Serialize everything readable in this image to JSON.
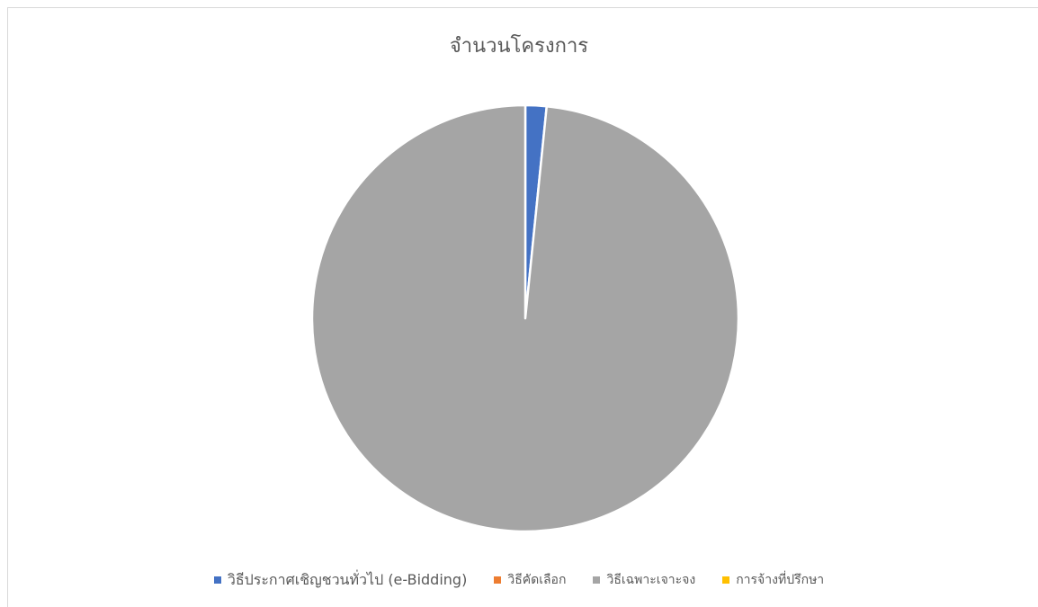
{
  "chart_data": {
    "type": "pie",
    "title": "จำนวนโครงการ",
    "categories": [
      "วิธีประกาศเชิญชวนทั่วไป (e-Bidding)",
      "วิธีคัดเลือก",
      "วิธีเฉพาะเจาะจง",
      "การจ้างที่ปรึกษา"
    ],
    "values": [
      1.6,
      0,
      98.4,
      0
    ],
    "unit": "percent",
    "colors": [
      "#4472C4",
      "#ED7D31",
      "#A5A5A5",
      "#FFC000"
    ],
    "legend_position": "bottom",
    "start_angle": "12 o'clock",
    "direction": "clockwise"
  }
}
